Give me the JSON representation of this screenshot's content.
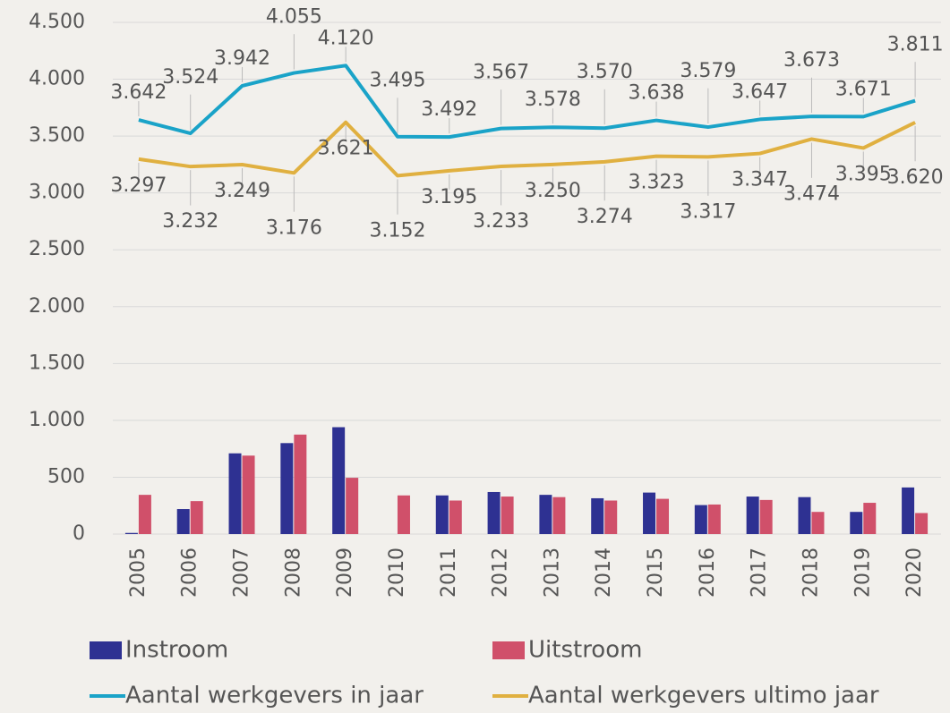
{
  "chart_data": {
    "type": "bar",
    "categories": [
      "2005",
      "2006",
      "2007",
      "2008",
      "2009",
      "2010",
      "2011",
      "2012",
      "2013",
      "2014",
      "2015",
      "2016",
      "2017",
      "2018",
      "2019",
      "2020"
    ],
    "series": [
      {
        "name": "Instroom",
        "type": "bar",
        "color": "#2e3192",
        "values": [
          10,
          220,
          710,
          800,
          940,
          0,
          340,
          370,
          345,
          315,
          365,
          255,
          330,
          325,
          195,
          410
        ]
      },
      {
        "name": "Uitstroom",
        "type": "bar",
        "color": "#d0506a",
        "values": [
          345,
          290,
          690,
          875,
          495,
          340,
          295,
          330,
          325,
          295,
          310,
          260,
          300,
          195,
          275,
          185
        ]
      },
      {
        "name": "Aantal werkgevers in jaar",
        "type": "line",
        "color": "#1aa3c8",
        "values": [
          3642,
          3524,
          3942,
          4055,
          4120,
          3495,
          3492,
          3567,
          3578,
          3570,
          3638,
          3579,
          3647,
          3673,
          3671,
          3811
        ],
        "value_labels": [
          "3.642",
          "3.524",
          "3.942",
          "4.055",
          "4.120",
          "3.495",
          "3.492",
          "3.567",
          "3.578",
          "3.570",
          "3.638",
          "3.579",
          "3.647",
          "3.673",
          "3.671",
          "3.811"
        ]
      },
      {
        "name": "Aantal werkgevers ultimo jaar",
        "type": "line",
        "color": "#e0b040",
        "values": [
          3297,
          3232,
          3249,
          3176,
          3621,
          3152,
          3195,
          3233,
          3250,
          3274,
          3323,
          3317,
          3347,
          3474,
          3395,
          3620
        ],
        "value_labels": [
          "3.297",
          "3.232",
          "3.249",
          "3.176",
          "3.621",
          "3.152",
          "3.195",
          "3.233",
          "3.250",
          "3.274",
          "3.323",
          "3.317",
          "3.347",
          "3.474",
          "3.395",
          "3.620"
        ]
      }
    ],
    "ylim": [
      0,
      4500
    ],
    "yticks": [
      0,
      500,
      {
        "value": 1000,
        "label": "1.000"
      },
      {
        "value": 1500,
        "label": "1.500"
      },
      {
        "value": 2000,
        "label": "2.000"
      },
      {
        "value": 2500,
        "label": "2.500"
      },
      {
        "value": 3000,
        "label": "3.000"
      },
      {
        "value": 3500,
        "label": "3.500"
      },
      {
        "value": 4000,
        "label": "4.000"
      },
      {
        "value": 4500,
        "label": "4.500"
      }
    ],
    "grid": true,
    "legend": "bottom"
  }
}
